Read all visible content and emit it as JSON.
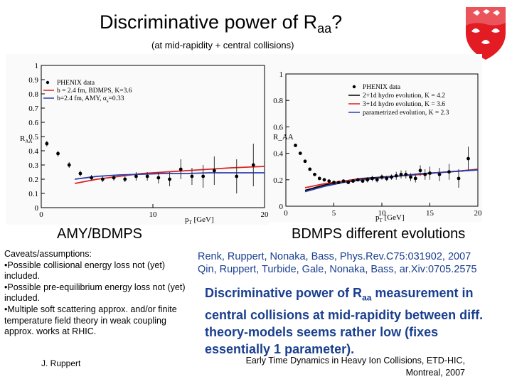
{
  "title": {
    "main": "Discriminative power of R",
    "sub": "aa",
    "end": "?"
  },
  "subtitle": "(at mid-rapidity + central collisions)",
  "logo": {
    "name": "McGill crest"
  },
  "left_chart": {
    "caption": "AMY/BDMPS",
    "ylabel_main": "R",
    "ylabel_sub": "AA",
    "xlabel_main": "p",
    "xlabel_sub": "T",
    "xlabel_unit": " [GeV]",
    "legend": [
      {
        "label": "PHENIX data",
        "color": "#000000",
        "kind": "dot"
      },
      {
        "label": "b = 2.4 fm, BDMPS, K=3.6",
        "color": "#e02020",
        "kind": "line"
      },
      {
        "label": "b=2.4 fm, AMY,   α",
        "sub": "s",
        "tail": "=0.33",
        "color": "#2a3fb0",
        "kind": "line"
      }
    ],
    "yticks": [
      "0",
      "0.1",
      "0.2",
      "0.3",
      "0.4",
      "0.5",
      "0.6",
      "0.7",
      "0.8",
      "0.9",
      "1"
    ],
    "xticks": [
      "0",
      "10",
      "20"
    ]
  },
  "right_chart": {
    "caption": "BDMPS different evolutions",
    "ylabel": "R_AA",
    "xlabel_main": "p",
    "xlabel_sub": "T",
    "xlabel_unit": " [GeV]",
    "legend": [
      {
        "label": "PHENIX data",
        "color": "#000000",
        "kind": "dot"
      },
      {
        "label": "2+1d hydro evolution, K = 4.2",
        "color": "#000000",
        "kind": "line"
      },
      {
        "label": "3+1d hydro evolution, K = 3.6",
        "color": "#e02020",
        "kind": "line"
      },
      {
        "label": "parametrized evolution, K = 2.3",
        "color": "#2a3fb0",
        "kind": "line"
      }
    ],
    "yticks": [
      "0",
      "0.2",
      "0.4",
      "0.6",
      "0.8",
      "1"
    ],
    "xticks": [
      "0",
      "5",
      "10",
      "15",
      "20"
    ]
  },
  "chart_data": [
    {
      "type": "scatter",
      "title": "AMY/BDMPS",
      "xlabel": "pT [GeV]",
      "ylabel": "RAA",
      "xlim": [
        0,
        20
      ],
      "ylim": [
        0,
        1
      ],
      "series": [
        {
          "name": "PHENIX data",
          "x": [
            0.5,
            1.5,
            2.5,
            3.5,
            4.5,
            5.5,
            6.5,
            7.5,
            8.5,
            9.5,
            10.5,
            11.5,
            12.5,
            13.5,
            14.5,
            15.5,
            17.5,
            19
          ],
          "y": [
            0.45,
            0.38,
            0.3,
            0.24,
            0.21,
            0.2,
            0.21,
            0.2,
            0.22,
            0.22,
            0.21,
            0.2,
            0.27,
            0.22,
            0.22,
            0.26,
            0.22,
            0.3
          ],
          "err": [
            0.02,
            0.02,
            0.02,
            0.02,
            0.02,
            0.02,
            0.02,
            0.02,
            0.03,
            0.03,
            0.04,
            0.05,
            0.07,
            0.06,
            0.08,
            0.1,
            0.12,
            0.15
          ]
        },
        {
          "name": "b = 2.4 fm, BDMPS, K=3.6",
          "x": [
            3,
            5,
            7,
            9,
            11,
            13,
            15,
            17,
            20
          ],
          "y": [
            0.17,
            0.2,
            0.22,
            0.24,
            0.25,
            0.26,
            0.27,
            0.28,
            0.29
          ]
        },
        {
          "name": "b=2.4 fm, AMY, αs=0.33",
          "x": [
            3,
            5,
            7,
            9,
            11,
            13,
            15,
            17,
            20
          ],
          "y": [
            0.2,
            0.22,
            0.23,
            0.235,
            0.24,
            0.24,
            0.245,
            0.245,
            0.245
          ]
        }
      ]
    },
    {
      "type": "scatter",
      "title": "BDMPS different evolutions",
      "xlabel": "pT [GeV]",
      "ylabel": "RAA",
      "xlim": [
        0,
        20
      ],
      "ylim": [
        0,
        1
      ],
      "series": [
        {
          "name": "PHENIX data",
          "x": [
            1,
            1.5,
            2,
            2.5,
            3,
            3.5,
            4,
            4.5,
            5,
            5.5,
            6,
            6.5,
            7,
            7.5,
            8,
            8.5,
            9,
            9.5,
            10,
            10.5,
            11,
            11.5,
            12,
            12.5,
            13,
            13.5,
            14,
            14.5,
            15,
            16,
            17,
            18,
            19
          ],
          "y": [
            0.46,
            0.4,
            0.34,
            0.28,
            0.24,
            0.21,
            0.2,
            0.19,
            0.18,
            0.18,
            0.19,
            0.18,
            0.19,
            0.2,
            0.19,
            0.2,
            0.21,
            0.2,
            0.22,
            0.21,
            0.22,
            0.23,
            0.24,
            0.24,
            0.22,
            0.21,
            0.27,
            0.24,
            0.25,
            0.24,
            0.26,
            0.21,
            0.36
          ],
          "err": [
            0.01,
            0.01,
            0.01,
            0.01,
            0.01,
            0.01,
            0.01,
            0.01,
            0.01,
            0.01,
            0.01,
            0.01,
            0.01,
            0.01,
            0.01,
            0.02,
            0.02,
            0.02,
            0.02,
            0.02,
            0.02,
            0.03,
            0.03,
            0.03,
            0.03,
            0.03,
            0.04,
            0.04,
            0.05,
            0.05,
            0.06,
            0.07,
            0.09
          ]
        },
        {
          "name": "2+1d hydro evolution, K = 4.2",
          "x": [
            2,
            4,
            6,
            8,
            10,
            12,
            14,
            16,
            18,
            20
          ],
          "y": [
            0.12,
            0.16,
            0.19,
            0.21,
            0.22,
            0.23,
            0.245,
            0.255,
            0.265,
            0.275
          ]
        },
        {
          "name": "3+1d hydro evolution, K = 3.6",
          "x": [
            2,
            4,
            6,
            8,
            10,
            12,
            14,
            16,
            18,
            20
          ],
          "y": [
            0.14,
            0.17,
            0.19,
            0.205,
            0.215,
            0.23,
            0.24,
            0.255,
            0.265,
            0.28
          ]
        },
        {
          "name": "parametrized evolution, K = 2.3",
          "x": [
            2,
            4,
            6,
            8,
            10,
            12,
            14,
            16,
            18,
            20
          ],
          "y": [
            0.11,
            0.15,
            0.18,
            0.2,
            0.215,
            0.23,
            0.245,
            0.255,
            0.265,
            0.275
          ]
        }
      ]
    }
  ],
  "captions": {
    "caveats_title": "Caveats/assumptions:",
    "caveat_1": "•Possible collisional energy loss not (yet) included.",
    "caveat_2": "•Possible pre-equilibrium energy loss not (yet) included.",
    "caveat_3": "•Multiple soft scattering approx. and/or finite temperature field theory in weak coupling approx. works at RHIC."
  },
  "references": {
    "ref_1": "Renk, Ruppert, Nonaka, Bass, Phys.Rev.C75:031902, 2007",
    "ref_2": "Qin, Ruppert, Turbide, Gale, Nonaka, Bass, ar.Xiv:0705.2575"
  },
  "conclusion": {
    "part1": "Discriminative power of R",
    "sub": "aa",
    "part2": " measurement in central collisions at mid-rapidity between diff. theory-models seems rather low (fixes essentially 1 parameter)."
  },
  "footer": {
    "author": "J. Ruppert",
    "conference_line1": "Early Time Dynamics in Heavy Ion Collisions, ETD-HIC,",
    "conference_line2": "Montreal, 2007"
  }
}
